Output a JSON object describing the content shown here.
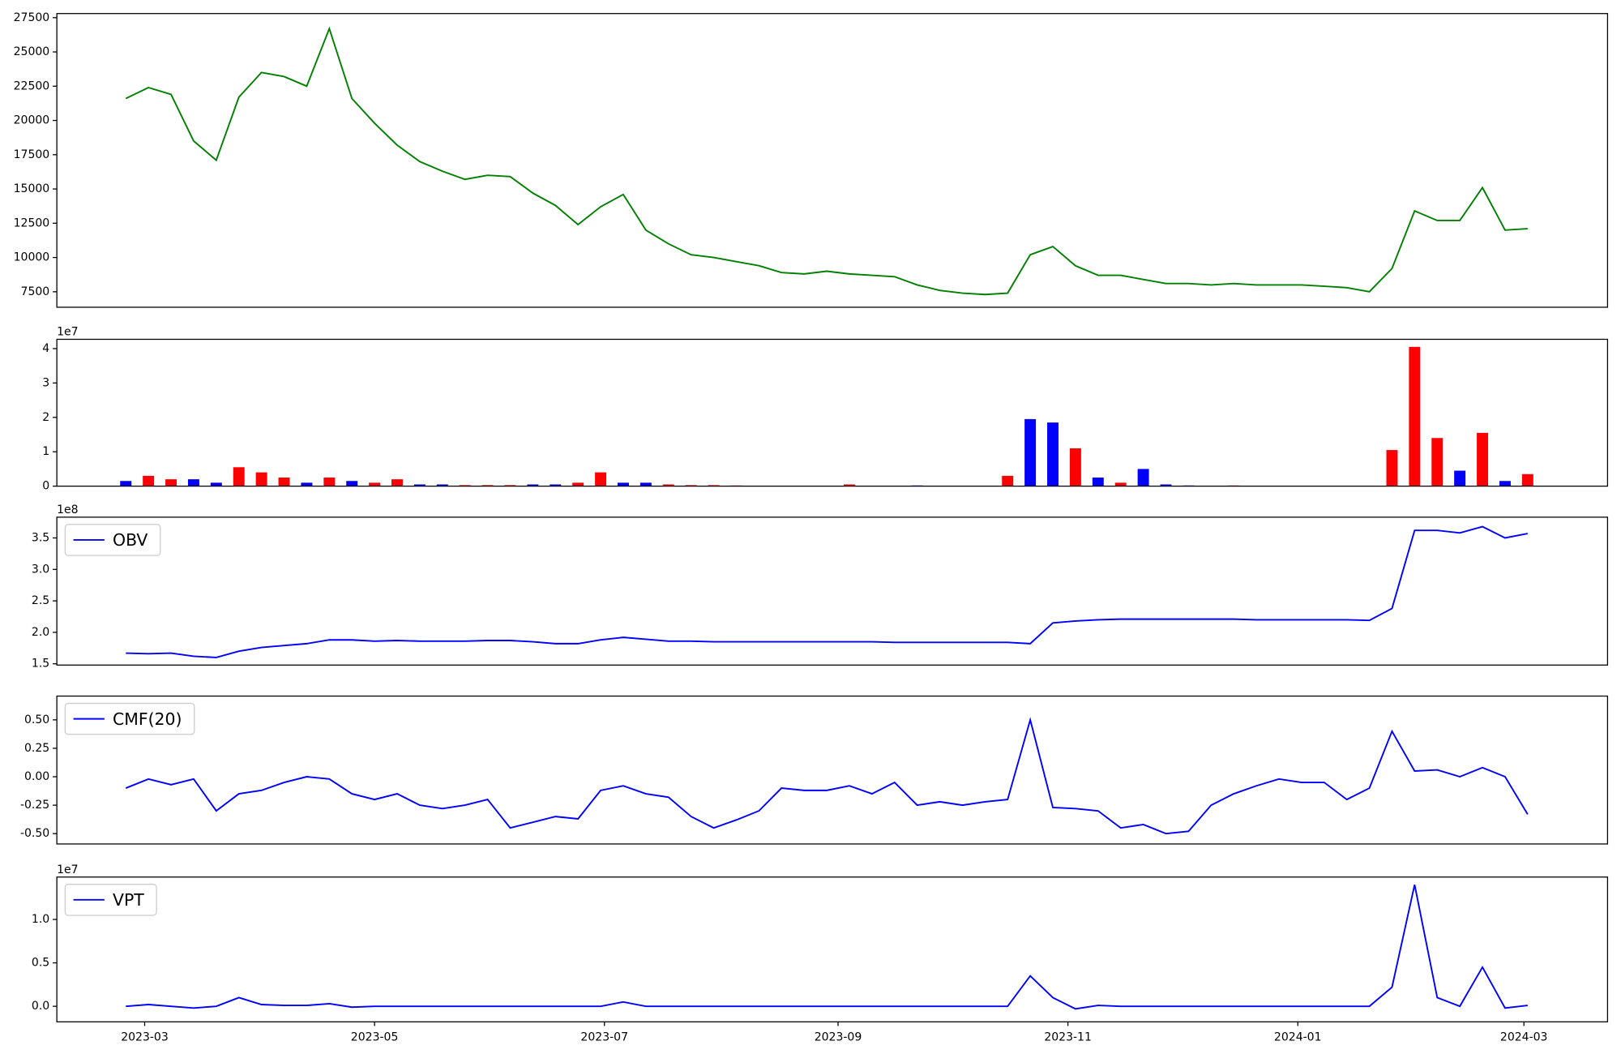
{
  "chart_data": [
    {
      "type": "line",
      "color": "green",
      "x": [
        54,
        60,
        66,
        72,
        78,
        84,
        90,
        96,
        102,
        108,
        114,
        120,
        126,
        132,
        138,
        144,
        150,
        156,
        162,
        168,
        174,
        180,
        186,
        192,
        198,
        204,
        210,
        216,
        222,
        228,
        234,
        240,
        246,
        252,
        258,
        264,
        270,
        276,
        282,
        288,
        294,
        300,
        306,
        312,
        318,
        324,
        330,
        336,
        342,
        348,
        354,
        360,
        366,
        372,
        378,
        384,
        390,
        396,
        402,
        408,
        414,
        420,
        426
      ],
      "values": [
        21600,
        22400,
        21900,
        18500,
        17100,
        21700,
        23500,
        23200,
        22500,
        26700,
        21600,
        19800,
        18200,
        17000,
        16300,
        15700,
        16000,
        15900,
        14700,
        13800,
        12400,
        13700,
        14600,
        12000,
        11000,
        10200,
        10000,
        9700,
        9400,
        8900,
        8800,
        9000,
        8800,
        8700,
        8600,
        8000,
        7600,
        7400,
        7300,
        7400,
        10200,
        10800,
        9400,
        8700,
        8700,
        8400,
        8100,
        8100,
        8000,
        8100,
        8000,
        8000,
        8000,
        7900,
        7800,
        7500,
        9200,
        13400,
        12700,
        12700,
        15100,
        12000,
        12100
      ],
      "xlim": [
        35.7,
        447.2
      ],
      "ylim": [
        6370,
        27800
      ],
      "yticks": [
        7500,
        10000,
        12500,
        15000,
        17500,
        20000,
        22500,
        25000,
        27500
      ]
    },
    {
      "type": "bar",
      "offset_label": "1e7",
      "x": [
        54,
        60,
        66,
        72,
        78,
        84,
        90,
        96,
        102,
        108,
        114,
        120,
        126,
        132,
        138,
        144,
        150,
        156,
        162,
        168,
        174,
        180,
        186,
        192,
        198,
        204,
        210,
        216,
        222,
        228,
        234,
        240,
        246,
        252,
        258,
        264,
        270,
        276,
        282,
        288,
        294,
        300,
        306,
        312,
        318,
        324,
        330,
        336,
        342,
        348,
        354,
        360,
        366,
        372,
        378,
        384,
        390,
        396,
        402,
        408,
        414,
        420,
        426
      ],
      "values": [
        0.15,
        0.3,
        0.2,
        0.2,
        0.1,
        0.55,
        0.4,
        0.25,
        0.1,
        0.25,
        0.15,
        0.1,
        0.2,
        0.05,
        0.05,
        0.03,
        0.03,
        0.03,
        0.05,
        0.05,
        0.1,
        0.4,
        0.1,
        0.1,
        0.05,
        0.03,
        0.03,
        0.02,
        0.01,
        0.01,
        0.01,
        0.01,
        0.05,
        0.01,
        0.01,
        0.02,
        0.01,
        0.01,
        0.01,
        0.3,
        1.95,
        1.85,
        1.1,
        0.25,
        0.1,
        0.5,
        0.05,
        0.02,
        0.01,
        0.02,
        0.01,
        0.01,
        0.01,
        0.01,
        0.01,
        0.01,
        1.05,
        4.05,
        1.4,
        0.45,
        1.55,
        0.15,
        0.35
      ],
      "colors": [
        "blue",
        "red",
        "red",
        "blue",
        "blue",
        "red",
        "red",
        "red",
        "blue",
        "red",
        "blue",
        "red",
        "red",
        "blue",
        "blue",
        "red",
        "red",
        "red",
        "blue",
        "blue",
        "red",
        "red",
        "blue",
        "blue",
        "red",
        "red",
        "red",
        "red",
        "blue",
        "red",
        "blue",
        "red",
        "red",
        "blue",
        "blue",
        "blue",
        "red",
        "blue",
        "blue",
        "red",
        "blue",
        "blue",
        "red",
        "blue",
        "red",
        "blue",
        "blue",
        "blue",
        "red",
        "red",
        "red",
        "blue",
        "blue",
        "blue",
        "blue",
        "blue",
        "red",
        "red",
        "red",
        "blue",
        "red",
        "blue",
        "red"
      ],
      "xlim": [
        35.7,
        447.2
      ],
      "ylim": [
        0,
        4.27
      ],
      "yticks": [
        0,
        1,
        2,
        3,
        4
      ]
    },
    {
      "type": "line",
      "offset_label": "1e8",
      "legend": "upper left",
      "x": [
        54,
        60,
        66,
        72,
        78,
        84,
        90,
        96,
        102,
        108,
        114,
        120,
        126,
        132,
        138,
        144,
        150,
        156,
        162,
        168,
        174,
        180,
        186,
        192,
        198,
        204,
        210,
        216,
        222,
        228,
        234,
        240,
        246,
        252,
        258,
        264,
        270,
        276,
        282,
        288,
        294,
        300,
        306,
        312,
        318,
        324,
        330,
        336,
        342,
        348,
        354,
        360,
        366,
        372,
        378,
        384,
        390,
        396,
        402,
        408,
        414,
        420,
        426
      ],
      "series": [
        {
          "name": "OBV",
          "color": "blue",
          "values": [
            1.67,
            1.66,
            1.67,
            1.62,
            1.6,
            1.7,
            1.76,
            1.79,
            1.82,
            1.88,
            1.88,
            1.86,
            1.87,
            1.86,
            1.86,
            1.86,
            1.87,
            1.87,
            1.85,
            1.82,
            1.82,
            1.88,
            1.92,
            1.89,
            1.86,
            1.86,
            1.85,
            1.85,
            1.85,
            1.85,
            1.85,
            1.85,
            1.85,
            1.85,
            1.84,
            1.84,
            1.84,
            1.84,
            1.84,
            1.84,
            1.82,
            2.15,
            2.18,
            2.2,
            2.21,
            2.21,
            2.21,
            2.21,
            2.21,
            2.21,
            2.2,
            2.2,
            2.2,
            2.2,
            2.2,
            2.19,
            2.38,
            3.62,
            3.62,
            3.58,
            3.68,
            3.5,
            3.57
          ]
        }
      ],
      "xlim": [
        35.7,
        447.2
      ],
      "ylim": [
        1.48,
        3.83
      ],
      "yticks": [
        1.5,
        {
          "value": 2,
          "label": "2.0"
        },
        2.5,
        {
          "value": 3,
          "label": "3.0"
        },
        3.5
      ]
    },
    {
      "type": "line",
      "legend": "upper left",
      "x": [
        54,
        60,
        66,
        72,
        78,
        84,
        90,
        96,
        102,
        108,
        114,
        120,
        126,
        132,
        138,
        144,
        150,
        156,
        162,
        168,
        174,
        180,
        186,
        192,
        198,
        204,
        210,
        216,
        222,
        228,
        234,
        240,
        246,
        252,
        258,
        264,
        270,
        276,
        282,
        288,
        294,
        300,
        306,
        312,
        318,
        324,
        330,
        336,
        342,
        348,
        354,
        360,
        366,
        372,
        378,
        384,
        390,
        396,
        402,
        408,
        414,
        420,
        426
      ],
      "series": [
        {
          "name": "CMF(20)",
          "color": "blue",
          "values": [
            -0.1,
            -0.02,
            -0.07,
            -0.02,
            -0.3,
            -0.15,
            -0.12,
            -0.05,
            0,
            -0.02,
            -0.15,
            -0.2,
            -0.15,
            -0.25,
            -0.28,
            -0.25,
            -0.2,
            -0.45,
            -0.4,
            -0.35,
            -0.37,
            -0.12,
            -0.08,
            -0.15,
            -0.18,
            -0.35,
            -0.45,
            -0.38,
            -0.3,
            -0.1,
            -0.12,
            -0.12,
            -0.08,
            -0.15,
            -0.05,
            -0.25,
            -0.22,
            -0.25,
            -0.22,
            -0.2,
            0.5,
            -0.27,
            -0.28,
            -0.3,
            -0.45,
            -0.42,
            -0.5,
            -0.48,
            -0.25,
            -0.15,
            -0.08,
            -0.02,
            -0.05,
            -0.05,
            -0.2,
            -0.1,
            0.4,
            0.05,
            0.06,
            0,
            0.08,
            0,
            -0.33
          ]
        }
      ],
      "xlim": [
        35.7,
        447.2
      ],
      "ylim": [
        -0.591,
        0.709
      ],
      "yticks": [
        {
          "value": -0.5,
          "label": "-0.50"
        },
        {
          "value": -0.25,
          "label": "-0.25"
        },
        {
          "value": 0,
          "label": "0.00"
        },
        {
          "value": 0.25,
          "label": "0.25"
        },
        {
          "value": 0.5,
          "label": "0.50"
        }
      ]
    },
    {
      "type": "line",
      "offset_label": "1e7",
      "legend": "upper left",
      "x": [
        54,
        60,
        66,
        72,
        78,
        84,
        90,
        96,
        102,
        108,
        114,
        120,
        126,
        132,
        138,
        144,
        150,
        156,
        162,
        168,
        174,
        180,
        186,
        192,
        198,
        204,
        210,
        216,
        222,
        228,
        234,
        240,
        246,
        252,
        258,
        264,
        270,
        276,
        282,
        288,
        294,
        300,
        306,
        312,
        318,
        324,
        330,
        336,
        342,
        348,
        354,
        360,
        366,
        372,
        378,
        384,
        390,
        396,
        402,
        408,
        414,
        420,
        426
      ],
      "series": [
        {
          "name": "VPT",
          "color": "blue",
          "values": [
            0,
            0.02,
            0,
            -0.02,
            0,
            0.1,
            0.02,
            0.01,
            0.01,
            0.03,
            -0.01,
            0,
            0,
            0,
            0,
            0,
            0,
            0,
            0,
            0,
            0,
            0,
            0.05,
            0,
            0,
            0,
            0,
            0,
            0,
            0,
            0,
            0,
            0,
            0,
            0,
            0,
            0,
            0,
            0,
            0,
            0.35,
            0.1,
            -0.03,
            0.01,
            0,
            0,
            0,
            0,
            0,
            0,
            0,
            0,
            0,
            0,
            0,
            0,
            0.22,
            1.4,
            0.1,
            0,
            0.45,
            -0.02,
            0.01
          ]
        }
      ],
      "xlim": [
        35.7,
        447.2
      ],
      "ylim": [
        -0.179,
        1.488
      ],
      "yticks": [
        {
          "value": 0,
          "label": "0.0"
        },
        0.5,
        {
          "value": 1,
          "label": "1.0"
        }
      ],
      "xticks": [
        {
          "value": 59,
          "label": "2023-03"
        },
        {
          "value": 120,
          "label": "2023-05"
        },
        {
          "value": 181,
          "label": "2023-07"
        },
        {
          "value": 243,
          "label": "2023-09"
        },
        {
          "value": 304,
          "label": "2023-11"
        },
        {
          "value": 365,
          "label": "2024-01"
        },
        {
          "value": 425,
          "label": "2024-03"
        }
      ]
    }
  ]
}
